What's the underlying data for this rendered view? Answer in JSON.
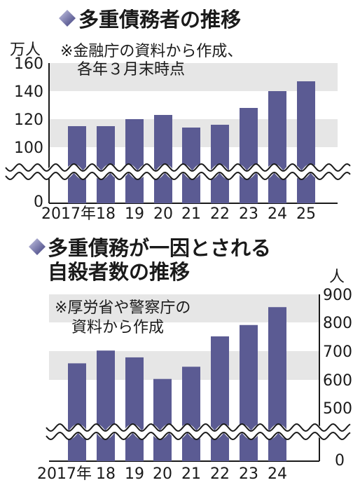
{
  "colors": {
    "bar": "#5b5b93",
    "band": "#e6e6e6",
    "axis": "#1a1a1a",
    "diamond_dark": "#3a3a7a",
    "diamond_light": "#c8c8e6"
  },
  "chart_data": [
    {
      "type": "bar",
      "title": "多重債務者の推移",
      "note_lines": [
        "※金融庁の資料から作成、",
        "各年３月末時点"
      ],
      "ylabel": "万人",
      "categories": [
        "2017年",
        "18",
        "19",
        "20",
        "21",
        "22",
        "23",
        "24",
        "25"
      ],
      "values": [
        115,
        115,
        120,
        123,
        114,
        116,
        128,
        140,
        147
      ],
      "yticks": [
        "160",
        "140",
        "120",
        "100",
        "0"
      ],
      "ylim": [
        0,
        160
      ],
      "broken_axis": [
        0,
        100
      ],
      "grid": "alternating bands"
    },
    {
      "type": "bar",
      "title_lines": [
        "多重債務が一因とされる",
        "自殺者数の推移"
      ],
      "note_lines": [
        "※厚労省や警察庁の",
        "資料から作成"
      ],
      "ylabel": "人",
      "categories": [
        "2017年",
        "18",
        "19",
        "20",
        "21",
        "22",
        "23",
        "24"
      ],
      "values": [
        657,
        702,
        678,
        602,
        645,
        752,
        792,
        855
      ],
      "yticks": [
        "900",
        "800",
        "700",
        "600",
        "500",
        "0"
      ],
      "ylim": [
        0,
        900
      ],
      "broken_axis": [
        0,
        500
      ],
      "grid": "alternating bands"
    }
  ]
}
